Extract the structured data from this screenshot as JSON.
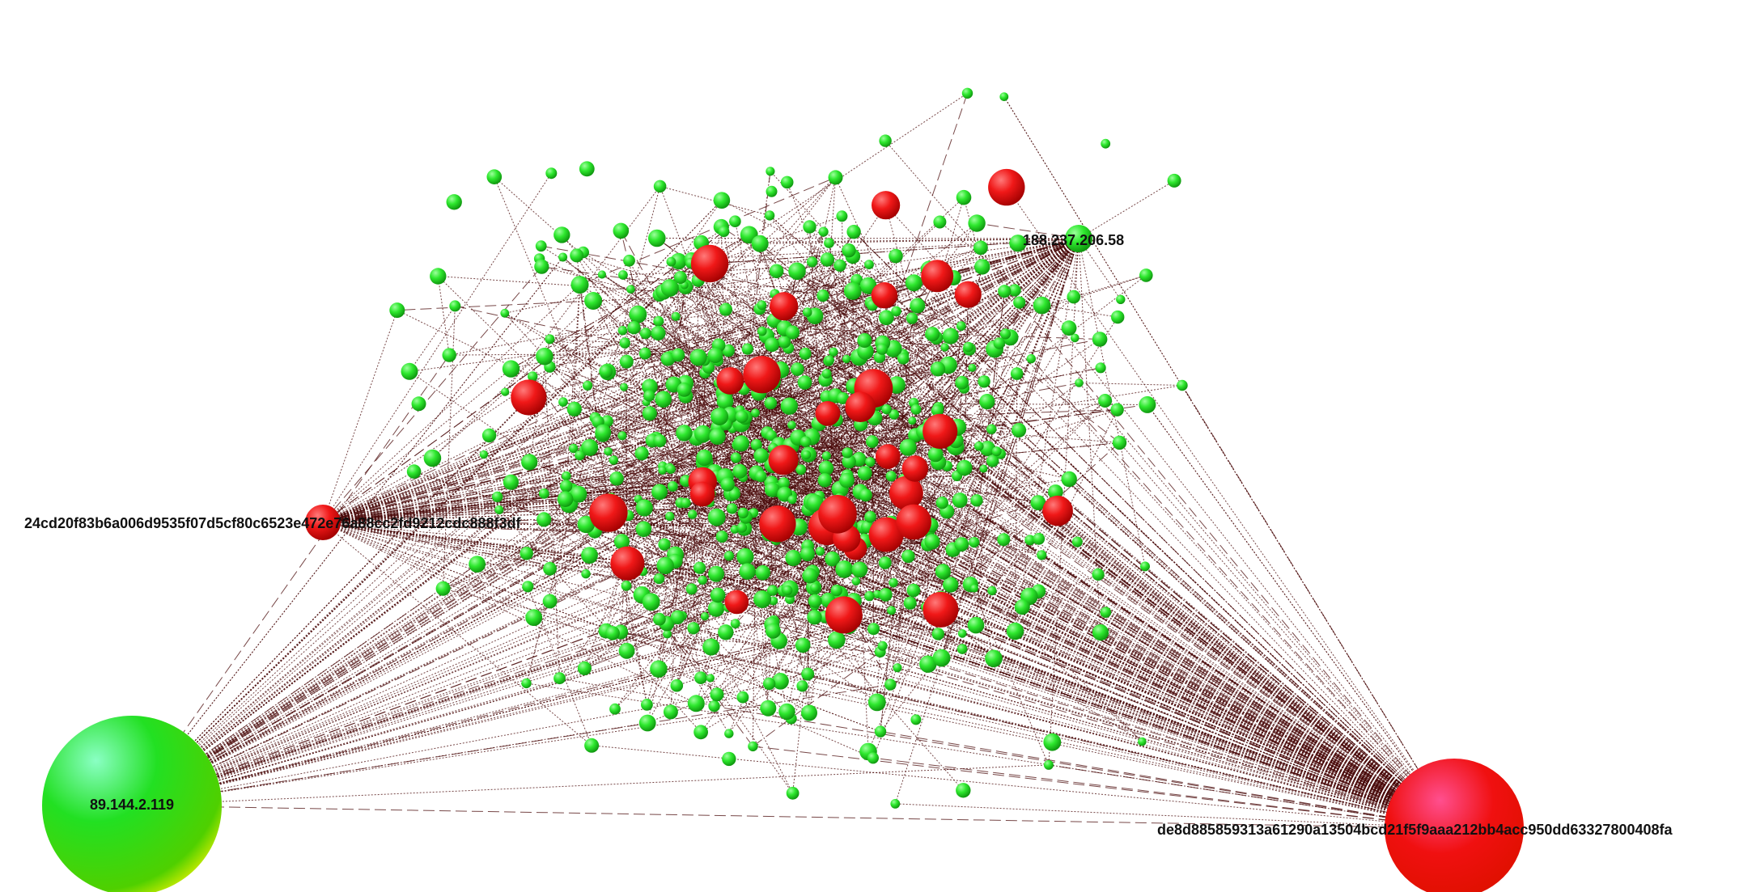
{
  "nodes": [
    {
      "label": "89.144.2.119"
    },
    {
      "label": "24cd20f83b6a006d9535f07d5cf80c6523e472e76a88cc2fd9212cdc888f3df"
    },
    {
      "label": "188.237.206.58"
    },
    {
      "label": "de8d885859313a61290a13504bcd21f5f9aaa212bb4acc950dd63327800408fa"
    }
  ]
}
